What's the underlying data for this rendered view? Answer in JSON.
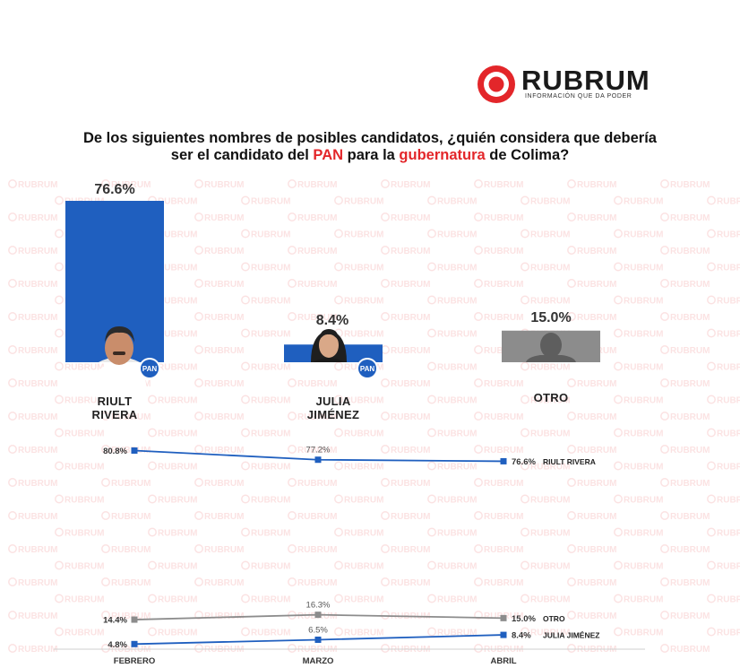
{
  "brand": {
    "name": "RUBRUM",
    "tagline": "INFORMACIÓN QUE DA PODER",
    "red": "#e3262a",
    "watermark_text": "RUBRUM"
  },
  "question": {
    "part1": "De los siguientes nombres de posibles candidatos, ¿quién considera que debería",
    "part2a": "ser el candidato del ",
    "pan": "PAN",
    "part2b": " para la ",
    "gub": "gubernatura",
    "part2c": " de Colima?"
  },
  "party_badge": "PAN",
  "chart_data": [
    {
      "type": "bar",
      "categories": [
        "RIULT RIVERA",
        "JULIA JIMÉNEZ",
        "OTRO"
      ],
      "category_lines": [
        [
          "RIULT",
          "RIVERA"
        ],
        [
          "JULIA",
          "JIMÉNEZ"
        ],
        [
          "OTRO"
        ]
      ],
      "values": [
        76.6,
        8.4,
        15.0
      ],
      "value_labels": [
        "76.6%",
        "8.4%",
        "15.0%"
      ],
      "colors": [
        "#1f5fbf",
        "#1f5fbf",
        "#8c8c8c"
      ],
      "ylim": [
        0,
        100
      ]
    },
    {
      "type": "line",
      "x": [
        "FEBRERO",
        "MARZO",
        "ABRIL"
      ],
      "ylim": [
        0,
        85
      ],
      "series": [
        {
          "name": "RIULT RIVERA",
          "values": [
            80.8,
            77.2,
            76.6
          ],
          "labels": [
            "80.8%",
            "77.2%",
            "76.6%"
          ],
          "color": "#1f5fbf"
        },
        {
          "name": "OTRO",
          "values": [
            14.4,
            16.3,
            15.0
          ],
          "labels": [
            "14.4%",
            "16.3%",
            "15.0%"
          ],
          "color": "#8c8c8c"
        },
        {
          "name": "JULIA JIMÉNEZ",
          "values": [
            4.8,
            6.5,
            8.4
          ],
          "labels": [
            "4.8%",
            "6.5%",
            "8.4%"
          ],
          "color": "#1f5fbf"
        }
      ]
    }
  ]
}
